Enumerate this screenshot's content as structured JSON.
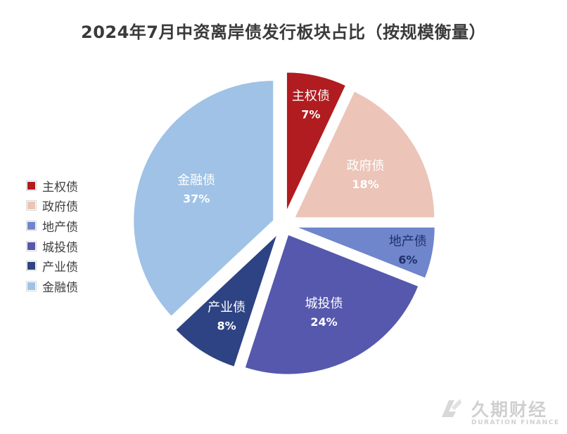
{
  "chart_data": {
    "type": "pie",
    "title": "2024年7月中资离岸债发行板块占比（按规模衡量）",
    "unit": "%",
    "start": "12 o'clock, clockwise",
    "exploded": true,
    "legend_position": "left",
    "slices": [
      {
        "label": "主权债",
        "value": 7,
        "value_label": "7%",
        "color": "#b01c20",
        "text_color": "#ffffff"
      },
      {
        "label": "政府债",
        "value": 18,
        "value_label": "18%",
        "color": "#ecc4b8",
        "text_color": "#ffffff"
      },
      {
        "label": "地产债",
        "value": 6,
        "value_label": "6%",
        "color": "#6f86cc",
        "text_color": "#1f2f6b"
      },
      {
        "label": "城投债",
        "value": 24,
        "value_label": "24%",
        "color": "#5558ad",
        "text_color": "#ffffff"
      },
      {
        "label": "产业债",
        "value": 8,
        "value_label": "8%",
        "color": "#2e4383",
        "text_color": "#ffffff"
      },
      {
        "label": "金融债",
        "value": 37,
        "value_label": "37%",
        "color": "#9fc2e6",
        "text_color": "#ffffff"
      }
    ]
  },
  "watermark": {
    "brand_cn": "久期财经",
    "brand_en": "DURATION FINANCE",
    "color": "#d0d0d0"
  }
}
